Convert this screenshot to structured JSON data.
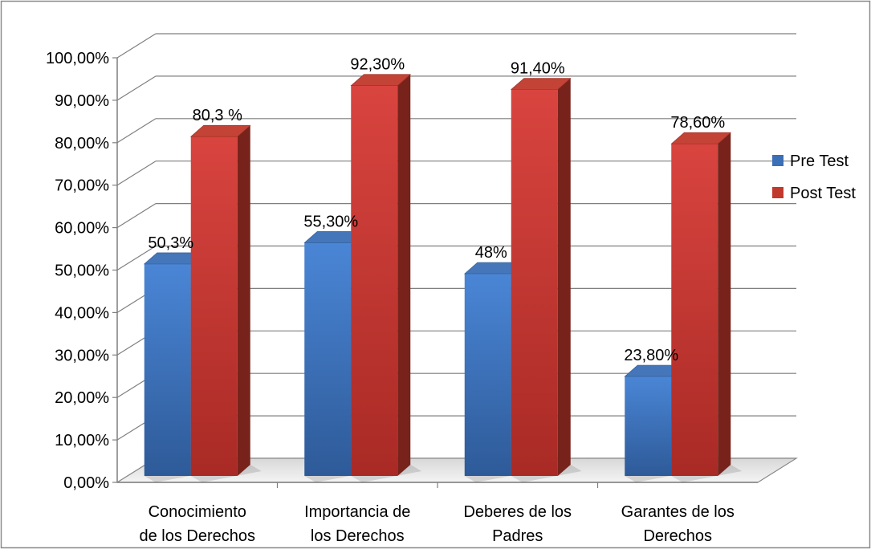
{
  "chart_data": {
    "type": "bar",
    "categories": [
      [
        "Conocimiento",
        "de los Derechos"
      ],
      [
        "Importancia de",
        "los Derechos"
      ],
      [
        "Deberes de los",
        "Padres"
      ],
      [
        "Garantes de los",
        "Derechos"
      ]
    ],
    "series": [
      {
        "name": "Pre Test",
        "values": [
          50.3,
          55.3,
          48,
          23.8
        ],
        "labels": [
          "50,3%",
          "55,30%",
          "48%",
          "23,80%"
        ],
        "color": "#3B6FB6"
      },
      {
        "name": "Post Test",
        "values": [
          80.3,
          92.3,
          91.4,
          78.6
        ],
        "labels": [
          "80,3 %",
          "92,30%",
          "91,40%",
          "78,60%"
        ],
        "color": "#C0392B"
      }
    ],
    "y_ticks": [
      "0,00%",
      "10,00%",
      "20,00%",
      "30,00%",
      "40,00%",
      "50,00%",
      "60,00%",
      "70,00%",
      "80,00%",
      "90,00%",
      "100,00%"
    ],
    "ylim": [
      0,
      100
    ],
    "grid": true,
    "legend_position": "right",
    "style": "3d-columns"
  }
}
